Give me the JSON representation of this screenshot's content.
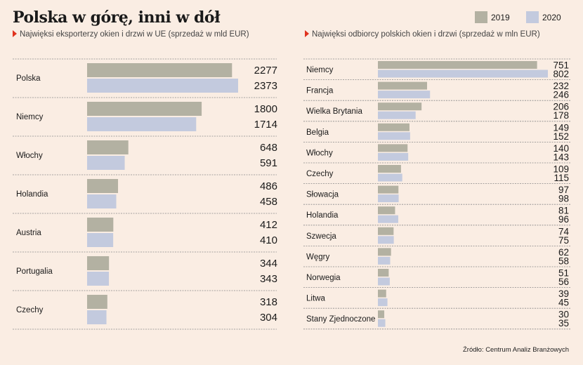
{
  "title": "Polska w górę, inni w dół",
  "colors": {
    "s2019": "#b3b1a2",
    "s2020": "#c3cade",
    "accent": "#e0321e",
    "divider": "#8a8a8a"
  },
  "legend": [
    {
      "name": "2019",
      "color": "#b3b1a2"
    },
    {
      "name": "2020",
      "color": "#c3cade"
    }
  ],
  "source": "Źródło: Centrum Analiz Branżowych",
  "chart_data": [
    {
      "type": "bar",
      "orientation": "horizontal",
      "subtitle": "Najwięksi eksporterzy okien i drzwi w UE (sprzedaż w mld EUR)",
      "categories": [
        "Polska",
        "Niemcy",
        "Włochy",
        "Holandia",
        "Austria",
        "Portugalia",
        "Czechy"
      ],
      "series": [
        {
          "name": "2019",
          "values": [
            2277,
            1800,
            648,
            486,
            412,
            344,
            318
          ]
        },
        {
          "name": "2020",
          "values": [
            2373,
            1714,
            591,
            458,
            410,
            343,
            304
          ]
        }
      ],
      "xlim": [
        0,
        2373
      ]
    },
    {
      "type": "bar",
      "orientation": "horizontal",
      "subtitle": "Najwięksi odbiorcy polskich okien i drzwi (sprzedaż w mln EUR)",
      "categories": [
        "Niemcy",
        "Francja",
        "Wielka Brytania",
        "Belgia",
        "Włochy",
        "Czechy",
        "Słowacja",
        "Holandia",
        "Szwecja",
        "Węgry",
        "Norwegia",
        "Litwa",
        "Stany Zjednoczone"
      ],
      "series": [
        {
          "name": "2019",
          "values": [
            751,
            232,
            206,
            149,
            140,
            109,
            97,
            81,
            74,
            62,
            51,
            39,
            30
          ]
        },
        {
          "name": "2020",
          "values": [
            802,
            246,
            178,
            152,
            143,
            115,
            98,
            96,
            75,
            58,
            56,
            45,
            35
          ]
        }
      ],
      "xlim": [
        0,
        802
      ]
    }
  ]
}
